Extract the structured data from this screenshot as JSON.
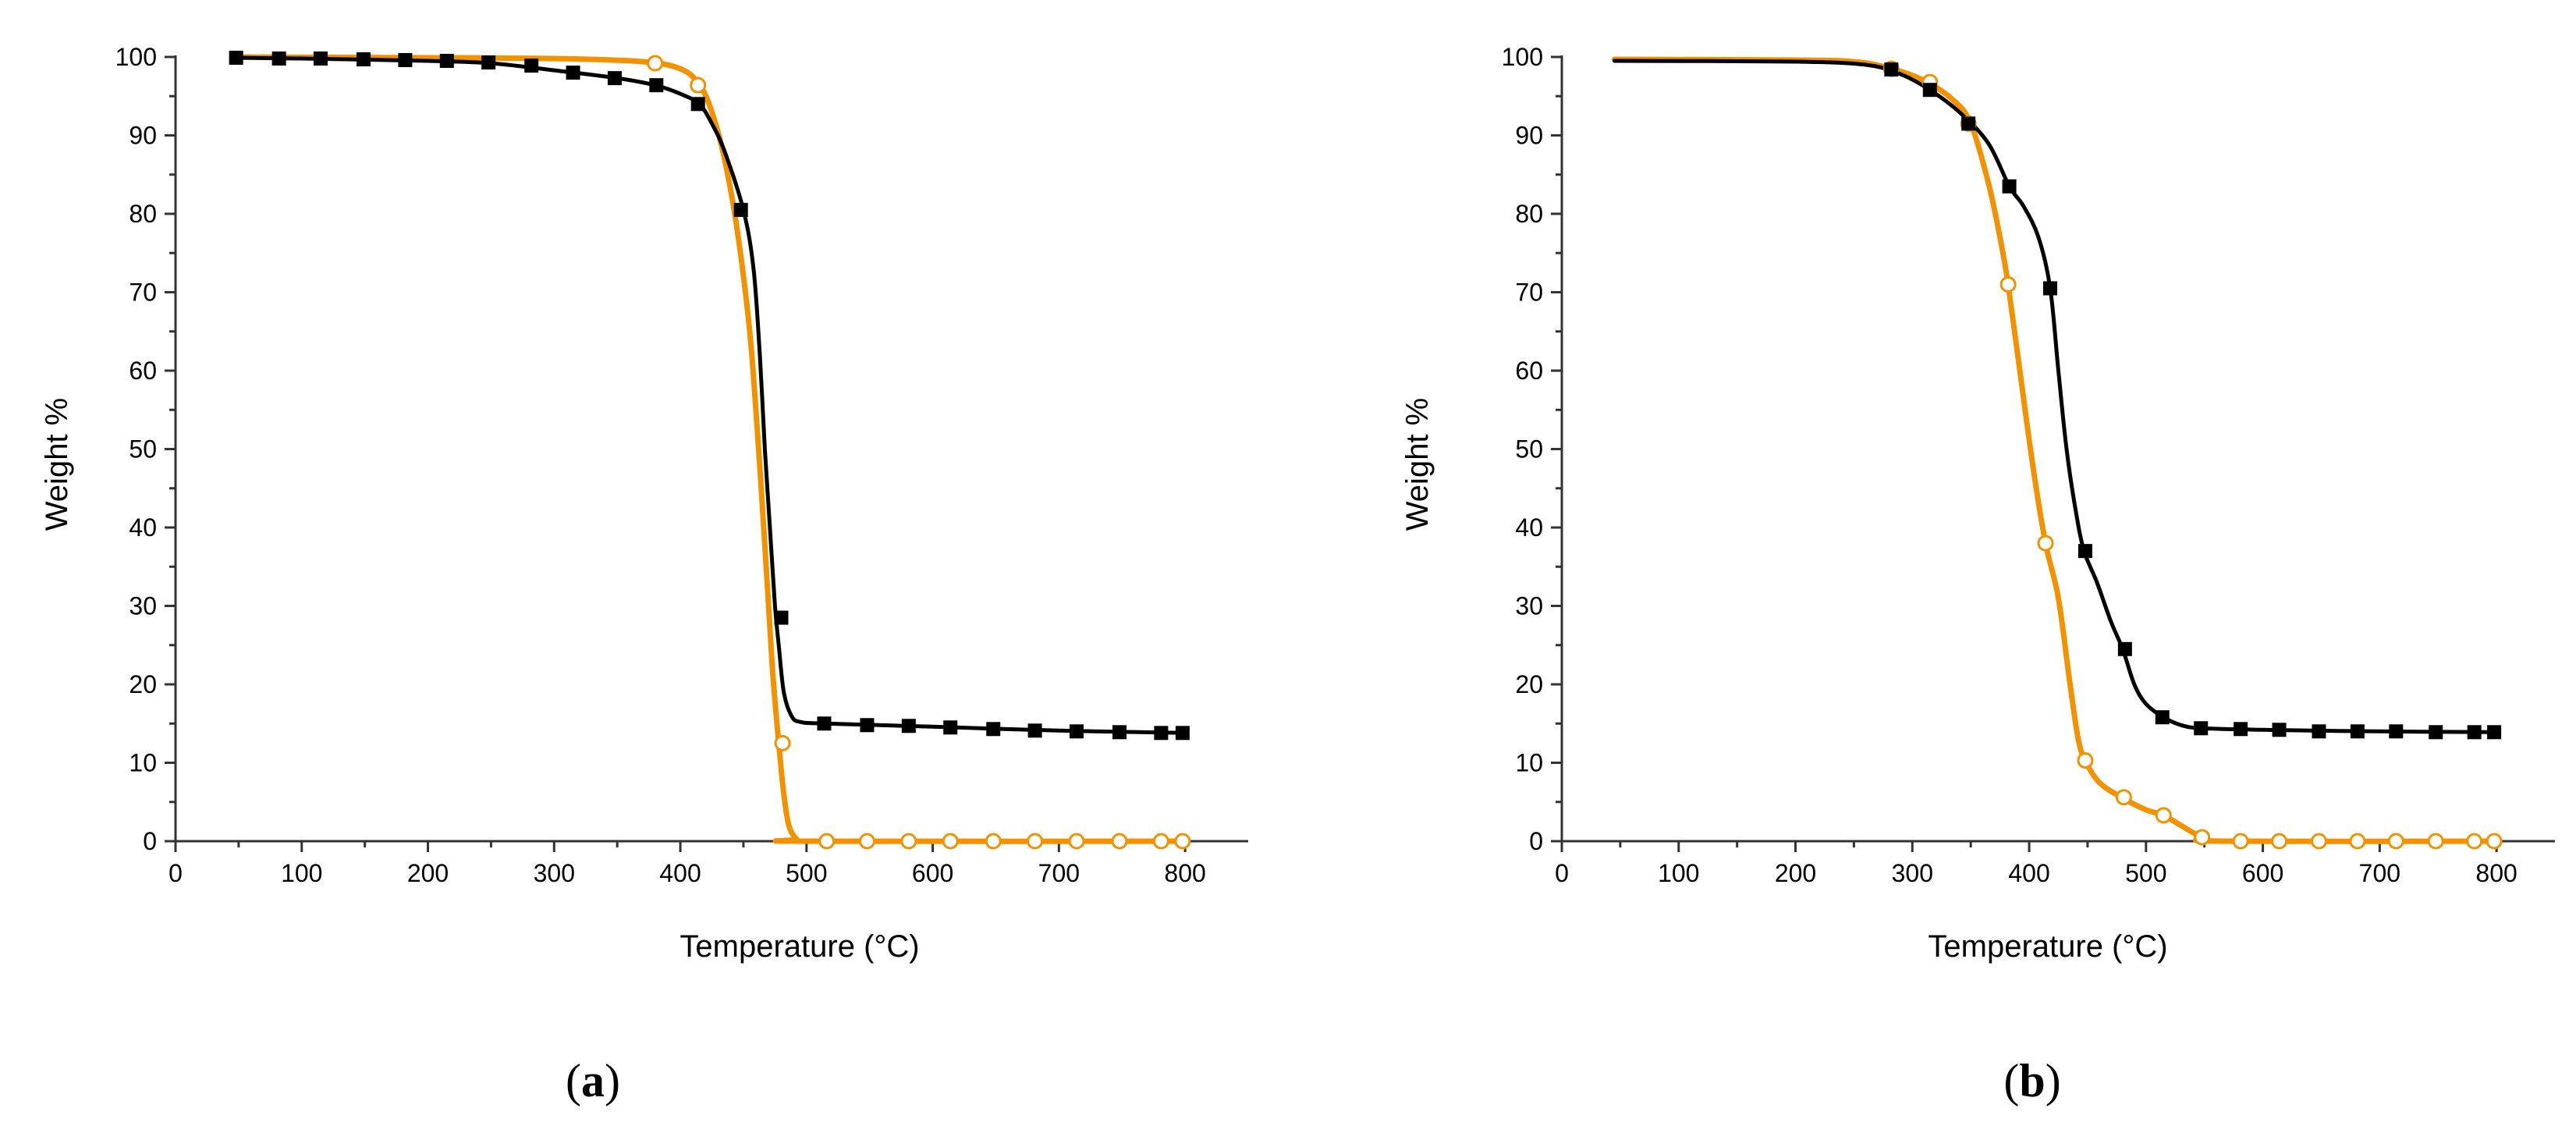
{
  "colors": {
    "sample_1": "#000000",
    "sample_2": "#f39200",
    "axis": "#333333"
  },
  "panel_labels": [
    {
      "open": "(",
      "letter": "a",
      "close": ")"
    },
    {
      "open": "(",
      "letter": "b",
      "close": ")"
    }
  ],
  "chart_data": [
    {
      "type": "line",
      "panel": "a",
      "title": "",
      "xlabel": "Temperature (°C)",
      "ylabel": "Weight %",
      "xlim": [
        0,
        850
      ],
      "ylim": [
        0,
        100
      ],
      "xticks": [
        0,
        100,
        200,
        300,
        400,
        500,
        600,
        700,
        800
      ],
      "yticks": [
        0,
        10,
        20,
        30,
        40,
        50,
        60,
        70,
        80,
        90,
        100
      ],
      "series": [
        {
          "name": "black filled squares",
          "color": "#000000",
          "marker": "square-filled",
          "curve": [
            [
              48,
              99.9
            ],
            [
              100,
              99.8
            ],
            [
              200,
              99.5
            ],
            [
              250,
              99.2
            ],
            [
              300,
              98.3
            ],
            [
              350,
              97.3
            ],
            [
              380,
              96.4
            ],
            [
              400,
              95.3
            ],
            [
              415,
              94.0
            ],
            [
              425,
              91.5
            ],
            [
              435,
              88.0
            ],
            [
              450,
              80.5
            ],
            [
              458,
              73
            ],
            [
              463,
              62
            ],
            [
              467,
              50
            ],
            [
              471,
              40
            ],
            [
              475,
              30
            ],
            [
              478,
              25
            ],
            [
              482,
              19
            ],
            [
              488,
              16
            ],
            [
              495,
              15.2
            ],
            [
              515,
              15.0
            ],
            [
              600,
              14.6
            ],
            [
              700,
              14.1
            ],
            [
              800,
              13.8
            ]
          ],
          "markers": [
            [
              48,
              99.9
            ],
            [
              82,
              99.8
            ],
            [
              115,
              99.8
            ],
            [
              149,
              99.7
            ],
            [
              182,
              99.6
            ],
            [
              215,
              99.5
            ],
            [
              248,
              99.3
            ],
            [
              282,
              98.9
            ],
            [
              315,
              98.0
            ],
            [
              348,
              97.3
            ],
            [
              381,
              96.4
            ],
            [
              414,
              94.0
            ],
            [
              448,
              80.5
            ],
            [
              480,
              28.5
            ],
            [
              514,
              15.0
            ],
            [
              548,
              14.8
            ],
            [
              581,
              14.7
            ],
            [
              614,
              14.5
            ],
            [
              648,
              14.3
            ],
            [
              681,
              14.1
            ],
            [
              714,
              14.0
            ],
            [
              748,
              13.9
            ],
            [
              781,
              13.8
            ],
            [
              798,
              13.8
            ]
          ]
        },
        {
          "name": "orange open circles",
          "color": "#f39200",
          "marker": "circle-open",
          "curve": [
            [
              48,
              100
            ],
            [
              200,
              99.9
            ],
            [
              300,
              99.8
            ],
            [
              370,
              99.4
            ],
            [
              400,
              98.5
            ],
            [
              415,
              96.5
            ],
            [
              425,
              93
            ],
            [
              435,
              87
            ],
            [
              445,
              78
            ],
            [
              455,
              65
            ],
            [
              462,
              50
            ],
            [
              468,
              35
            ],
            [
              473,
              22
            ],
            [
              478,
              12.5
            ],
            [
              482,
              6
            ],
            [
              486,
              2
            ],
            [
              492,
              0.3
            ],
            [
              500,
              0
            ],
            [
              800,
              0
            ]
          ],
          "markers": [
            [
              380,
              99.2
            ],
            [
              414,
              96.4
            ],
            [
              481,
              12.5
            ],
            [
              516,
              0
            ],
            [
              548,
              0
            ],
            [
              581,
              0
            ],
            [
              614,
              0
            ],
            [
              648,
              0
            ],
            [
              681,
              0
            ],
            [
              714,
              0
            ],
            [
              748,
              0
            ],
            [
              781,
              0
            ],
            [
              798,
              0
            ]
          ]
        }
      ]
    },
    {
      "type": "line",
      "panel": "b",
      "title": "",
      "xlabel": "Temperature (°C)",
      "ylabel": "Weight %",
      "xlim": [
        0,
        850
      ],
      "ylim": [
        0,
        100
      ],
      "xticks": [
        0,
        100,
        200,
        300,
        400,
        500,
        600,
        700,
        800
      ],
      "yticks": [
        0,
        10,
        20,
        30,
        40,
        50,
        60,
        70,
        80,
        90,
        100
      ],
      "series": [
        {
          "name": "black filled squares",
          "color": "#000000",
          "marker": "square-filled",
          "curve": [
            [
              45,
              99.5
            ],
            [
              200,
              99.4
            ],
            [
              260,
              99.0
            ],
            [
              290,
              97.8
            ],
            [
              315,
              95.8
            ],
            [
              340,
              93.0
            ],
            [
              365,
              89.0
            ],
            [
              383,
              83.5
            ],
            [
              395,
              81
            ],
            [
              408,
              77
            ],
            [
              418,
              70.5
            ],
            [
              425,
              60
            ],
            [
              432,
              50
            ],
            [
              440,
              42
            ],
            [
              447,
              37
            ],
            [
              458,
              33
            ],
            [
              470,
              28
            ],
            [
              480,
              24.5
            ],
            [
              490,
              20
            ],
            [
              500,
              17.5
            ],
            [
              515,
              15.8
            ],
            [
              530,
              14.8
            ],
            [
              548,
              14.4
            ],
            [
              600,
              14.2
            ],
            [
              700,
              14.0
            ],
            [
              800,
              13.9
            ]
          ],
          "markers": [
            [
              282,
              98.4
            ],
            [
              315,
              95.8
            ],
            [
              348,
              91.5
            ],
            [
              383,
              83.5
            ],
            [
              418,
              70.5
            ],
            [
              448,
              37.0
            ],
            [
              482,
              24.5
            ],
            [
              514,
              15.8
            ],
            [
              547,
              14.4
            ],
            [
              581,
              14.3
            ],
            [
              614,
              14.2
            ],
            [
              648,
              14.0
            ],
            [
              681,
              14.0
            ],
            [
              714,
              14.0
            ],
            [
              748,
              13.9
            ],
            [
              781,
              13.9
            ],
            [
              798,
              13.9
            ]
          ]
        },
        {
          "name": "orange open circles",
          "color": "#f39200",
          "marker": "circle-open",
          "curve": [
            [
              45,
              99.7
            ],
            [
              200,
              99.6
            ],
            [
              250,
              99.4
            ],
            [
              280,
              98.6
            ],
            [
              310,
              97.0
            ],
            [
              335,
              94.5
            ],
            [
              350,
              91.5
            ],
            [
              365,
              84
            ],
            [
              375,
              77
            ],
            [
              382,
              71
            ],
            [
              392,
              60
            ],
            [
              403,
              48
            ],
            [
              414,
              38
            ],
            [
              425,
              31
            ],
            [
              435,
              20
            ],
            [
              442,
              13
            ],
            [
              448,
              10.3
            ],
            [
              460,
              7.5
            ],
            [
              480,
              5.5
            ],
            [
              500,
              4
            ],
            [
              515,
              3.3
            ],
            [
              530,
              2
            ],
            [
              548,
              0.5
            ],
            [
              565,
              0
            ],
            [
              800,
              0
            ]
          ],
          "markers": [
            [
              282,
              98.5
            ],
            [
              315,
              96.8
            ],
            [
              348,
              91.5
            ],
            [
              382,
              71.0
            ],
            [
              414,
              38.0
            ],
            [
              448,
              10.3
            ],
            [
              481,
              5.6
            ],
            [
              515,
              3.3
            ],
            [
              548,
              0.5
            ],
            [
              581,
              0
            ],
            [
              614,
              0
            ],
            [
              648,
              0
            ],
            [
              681,
              0
            ],
            [
              714,
              0
            ],
            [
              748,
              0
            ],
            [
              781,
              0
            ],
            [
              798,
              0
            ]
          ]
        }
      ]
    }
  ]
}
